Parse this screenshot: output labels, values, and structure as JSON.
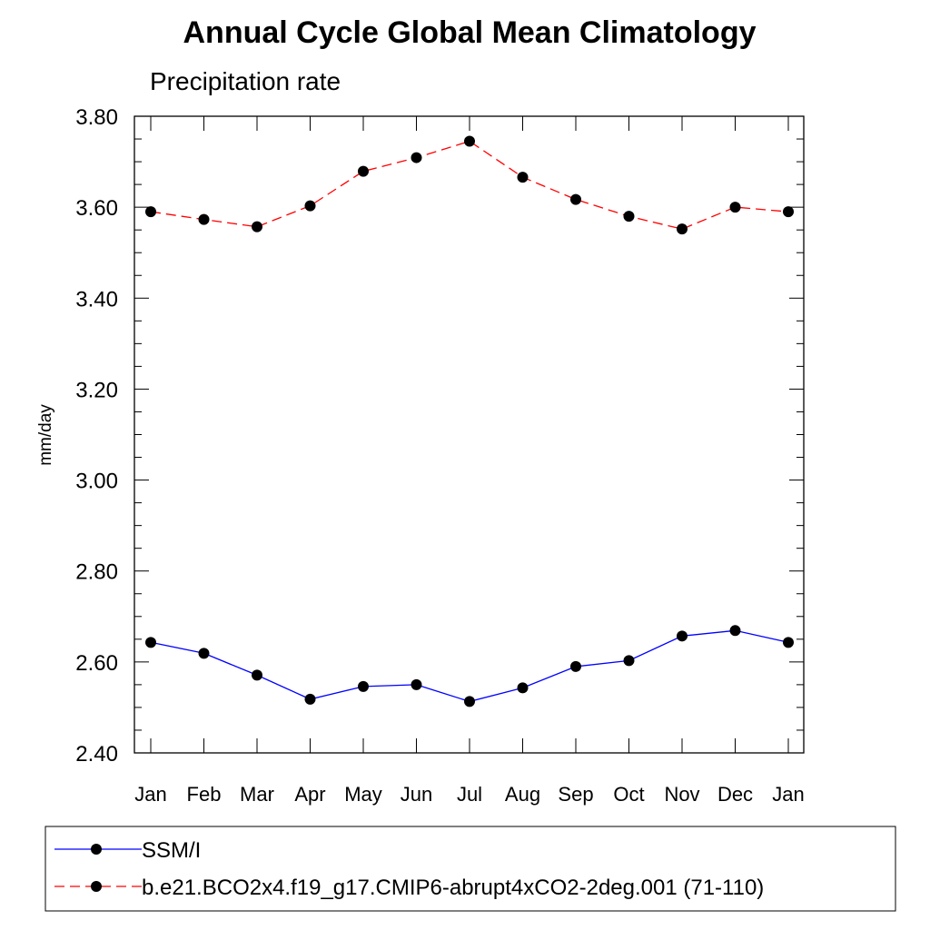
{
  "chart_data": {
    "type": "line",
    "title": "Annual Cycle Global Mean Climatology",
    "subtitle": "Precipitation rate",
    "ylabel": "mm/day",
    "xlabel": "",
    "ylim": [
      2.4,
      3.8
    ],
    "yticks": [
      "3.80",
      "3.60",
      "3.40",
      "3.20",
      "3.00",
      "2.80",
      "2.60",
      "2.40"
    ],
    "categories": [
      "Jan",
      "Feb",
      "Mar",
      "Apr",
      "May",
      "Jun",
      "Jul",
      "Aug",
      "Sep",
      "Oct",
      "Nov",
      "Dec",
      "Jan"
    ],
    "grid": false,
    "legend_position": "bottom",
    "series": [
      {
        "name": "SSM/I",
        "color": "#0000ff",
        "line_style": "solid",
        "marker": "filled-circle",
        "values": [
          2.643,
          2.619,
          2.571,
          2.518,
          2.546,
          2.55,
          2.513,
          2.543,
          2.59,
          2.603,
          2.657,
          2.669,
          2.643
        ]
      },
      {
        "name": "b.e21.BCO2x4.f19_g17.CMIP6-abrupt4xCO2-2deg.001 (71-110)",
        "color": "#ff0000",
        "line_style": "dashed",
        "marker": "filled-circle",
        "values": [
          3.59,
          3.573,
          3.557,
          3.603,
          3.679,
          3.709,
          3.745,
          3.666,
          3.617,
          3.58,
          3.552,
          3.6,
          3.59
        ]
      }
    ]
  }
}
